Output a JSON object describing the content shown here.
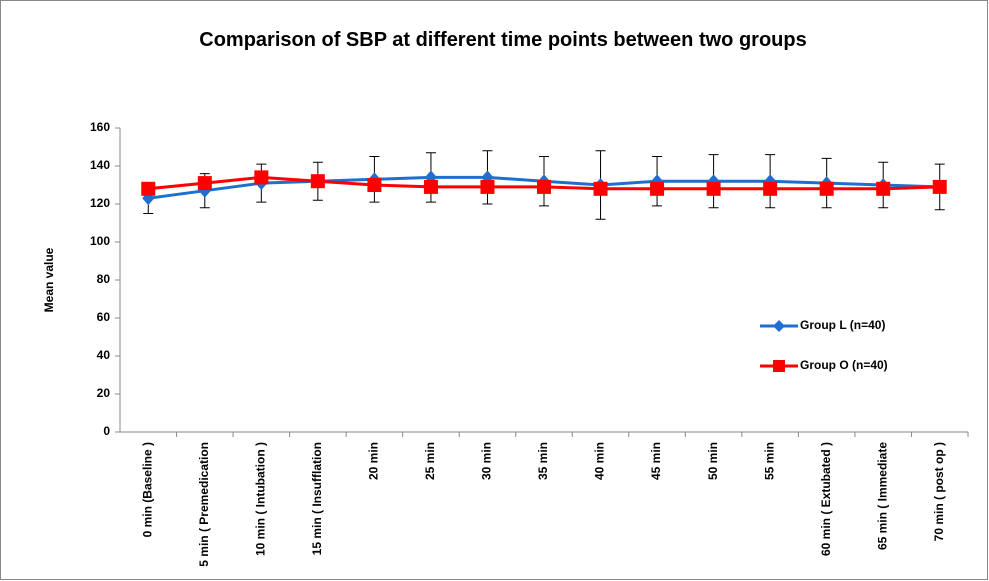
{
  "chart_data": {
    "type": "line",
    "title": "Comparison of SBP at different time points between two groups",
    "y_label": "Mean value",
    "categories": [
      "0 min (Baseline )",
      "5 min ( Premedication",
      "10 min ( Intubation )",
      "15 min ( Insufflation",
      "20 min",
      "25 min",
      "30 min",
      "35 min",
      "40 min",
      "45 min",
      "50 min",
      "55 min",
      "60 min ( Extubated )",
      "65 min ( Immediate",
      "70 min ( post op )"
    ],
    "series": [
      {
        "name": "Group L (n=40)",
        "color": "#1f6fd1",
        "marker": "diamond",
        "values": [
          123,
          127,
          131,
          132,
          133,
          134,
          134,
          132,
          130,
          132,
          132,
          132,
          131,
          130,
          129
        ],
        "errors": [
          8,
          9,
          10,
          10,
          12,
          13,
          14,
          13,
          18,
          13,
          14,
          14,
          13,
          12,
          12
        ]
      },
      {
        "name": "Group O (n=40)",
        "color": "#ff0000",
        "marker": "square",
        "values": [
          128,
          131,
          134,
          132,
          130,
          129,
          129,
          129,
          128,
          128,
          128,
          128,
          128,
          128,
          129
        ]
      }
    ],
    "ylim": [
      0,
      160
    ],
    "yticks": [
      0,
      20,
      40,
      60,
      80,
      100,
      120,
      140,
      160
    ],
    "grid": false
  }
}
